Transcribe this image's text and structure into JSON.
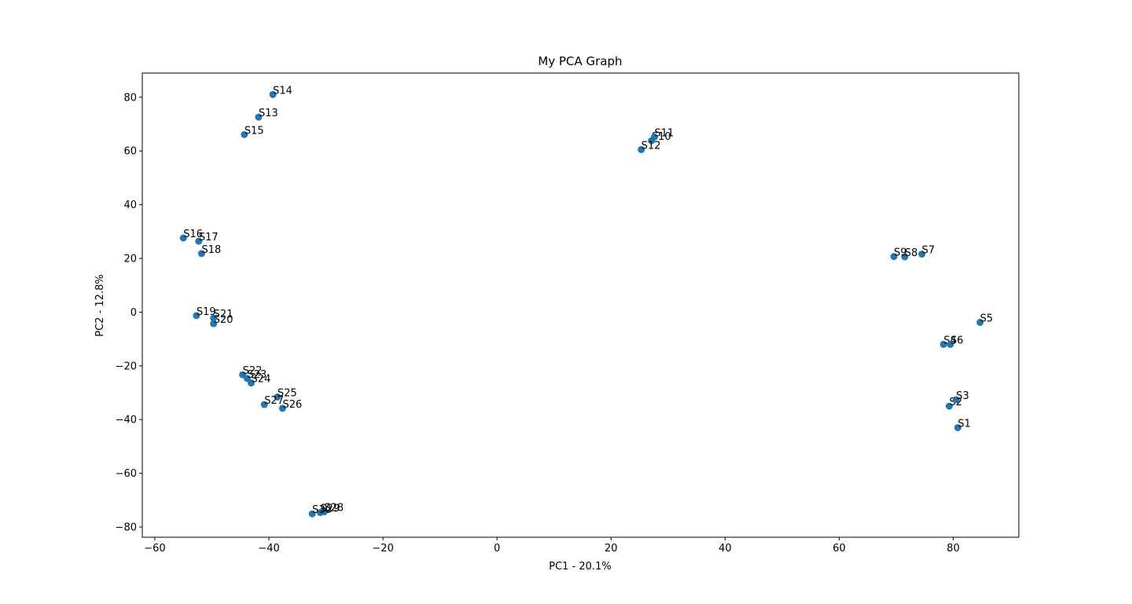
{
  "chart_data": {
    "type": "scatter",
    "title": "My PCA Graph",
    "xlabel": "PC1 - 20.1%",
    "ylabel": "PC2 - 12.8%",
    "xlim": [
      -62.2,
      91.5
    ],
    "ylim": [
      -83.8,
      89.0
    ],
    "xticks": [
      -60,
      -40,
      -20,
      0,
      20,
      40,
      60,
      80
    ],
    "yticks": [
      -80,
      -60,
      -40,
      -20,
      0,
      20,
      40,
      60,
      80
    ],
    "xtick_labels": [
      "−60",
      "−40",
      "−20",
      "0",
      "20",
      "40",
      "60",
      "80"
    ],
    "ytick_labels": [
      "−80",
      "−60",
      "−40",
      "−20",
      "0",
      "20",
      "40",
      "60",
      "80"
    ],
    "grid": false,
    "marker_color": "#1f77b4",
    "points": [
      {
        "label": "S1",
        "x": 80.8,
        "y": -43.0
      },
      {
        "label": "S2",
        "x": 79.3,
        "y": -35.0
      },
      {
        "label": "S3",
        "x": 80.5,
        "y": -32.6
      },
      {
        "label": "S4",
        "x": 78.3,
        "y": -12.0
      },
      {
        "label": "S5",
        "x": 84.7,
        "y": -3.8
      },
      {
        "label": "S6",
        "x": 79.5,
        "y": -12.0
      },
      {
        "label": "S7",
        "x": 74.5,
        "y": 21.6
      },
      {
        "label": "S8",
        "x": 71.5,
        "y": 20.6
      },
      {
        "label": "S9",
        "x": 69.6,
        "y": 20.7
      },
      {
        "label": "S10",
        "x": 27.1,
        "y": 63.8
      },
      {
        "label": "S11",
        "x": 27.6,
        "y": 65.2
      },
      {
        "label": "S12",
        "x": 25.3,
        "y": 60.5
      },
      {
        "label": "S13",
        "x": -41.8,
        "y": 72.6
      },
      {
        "label": "S14",
        "x": -39.3,
        "y": 81.0
      },
      {
        "label": "S15",
        "x": -44.3,
        "y": 66.1
      },
      {
        "label": "S16",
        "x": -55.0,
        "y": 27.6
      },
      {
        "label": "S17",
        "x": -52.3,
        "y": 26.4
      },
      {
        "label": "S18",
        "x": -51.8,
        "y": 21.8
      },
      {
        "label": "S19",
        "x": -52.7,
        "y": -1.3
      },
      {
        "label": "S20",
        "x": -49.7,
        "y": -4.3
      },
      {
        "label": "S21",
        "x": -49.7,
        "y": -2.2
      },
      {
        "label": "S22",
        "x": -44.6,
        "y": -23.3
      },
      {
        "label": "S23",
        "x": -43.8,
        "y": -24.7
      },
      {
        "label": "S24",
        "x": -43.1,
        "y": -26.4
      },
      {
        "label": "S25",
        "x": -38.5,
        "y": -31.6
      },
      {
        "label": "S26",
        "x": -37.6,
        "y": -35.8
      },
      {
        "label": "S27",
        "x": -40.8,
        "y": -34.4
      },
      {
        "label": "S28",
        "x": -30.3,
        "y": -74.3
      },
      {
        "label": "S29",
        "x": -31.0,
        "y": -74.6
      },
      {
        "label": "S30",
        "x": -32.4,
        "y": -75.1
      }
    ]
  }
}
